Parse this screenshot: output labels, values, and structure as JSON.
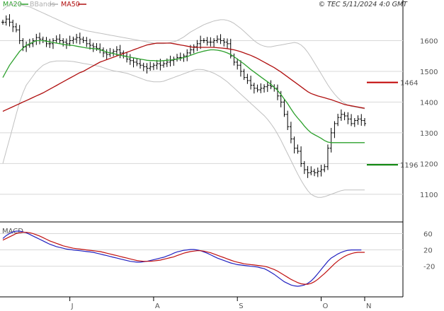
{
  "header": {
    "copyright": "© TEC 5/11/2024 4:0 GMT",
    "legend": [
      {
        "label": "MA20",
        "color": "#2ca02c"
      },
      {
        "label": "BBands",
        "color": "#b0b0b0"
      },
      {
        "label": "MA50",
        "color": "#b01010"
      }
    ]
  },
  "chart_data": [
    {
      "type": "ohlc",
      "yticks": [
        "1600",
        "1500",
        "1400",
        "1300",
        "1200",
        "1100"
      ],
      "ylim": [
        1010,
        1700
      ],
      "annotations": [
        {
          "label": "1464",
          "value": 1464,
          "color": "#c00000"
        },
        {
          "label": "1196",
          "value": 1196,
          "color": "#008000"
        }
      ],
      "xticks": [
        "J",
        "A",
        "S",
        "O",
        "N"
      ],
      "series": {
        "close": [
          1660,
          1670,
          1660,
          1645,
          1635,
          1600,
          1580,
          1585,
          1590,
          1600,
          1610,
          1605,
          1600,
          1590,
          1590,
          1600,
          1605,
          1600,
          1595,
          1590,
          1600,
          1605,
          1610,
          1605,
          1600,
          1590,
          1585,
          1580,
          1575,
          1570,
          1560,
          1555,
          1560,
          1565,
          1570,
          1560,
          1550,
          1540,
          1535,
          1530,
          1525,
          1520,
          1515,
          1510,
          1515,
          1520,
          1525,
          1520,
          1525,
          1530,
          1535,
          1540,
          1545,
          1545,
          1550,
          1560,
          1570,
          1580,
          1590,
          1600,
          1600,
          1595,
          1595,
          1600,
          1605,
          1600,
          1595,
          1590,
          1550,
          1530,
          1520,
          1500,
          1480,
          1470,
          1455,
          1445,
          1440,
          1445,
          1450,
          1455,
          1450,
          1445,
          1420,
          1400,
          1360,
          1320,
          1280,
          1250,
          1240,
          1200,
          1180,
          1170,
          1175,
          1170,
          1175,
          1180,
          1190,
          1250,
          1300,
          1330,
          1350,
          1360,
          1355,
          1345,
          1330,
          1340,
          1345,
          1340,
          1330
        ],
        "ma20": [
          1480,
          1500,
          1520,
          1535,
          1550,
          1565,
          1575,
          1585,
          1590,
          1595,
          1600,
          1600,
          1600,
          1598,
          1596,
          1594,
          1592,
          1590,
          1588,
          1586,
          1585,
          1584,
          1582,
          1580,
          1578,
          1576,
          1575,
          1574,
          1573,
          1570,
          1567,
          1563,
          1560,
          1558,
          1555,
          1553,
          1550,
          1548,
          1546,
          1544,
          1542,
          1540,
          1538,
          1536,
          1535,
          1535,
          1534,
          1534,
          1535,
          1536,
          1537,
          1538,
          1540,
          1542,
          1545,
          1548,
          1552,
          1556,
          1560,
          1563,
          1566,
          1568,
          1570,
          1570,
          1569,
          1567,
          1564,
          1560,
          1555,
          1548,
          1540,
          1532,
          1524,
          1515,
          1506,
          1498,
          1490,
          1482,
          1474,
          1466,
          1458,
          1448,
          1438,
          1425,
          1410,
          1395,
          1378,
          1362,
          1348,
          1336,
          1322,
          1310,
          1300,
          1294,
          1288,
          1282,
          1275,
          1270,
          1268,
          1268,
          1268,
          1268,
          1268,
          1268,
          1268,
          1268,
          1268,
          1268,
          1268
        ],
        "ma50": [
          1370,
          1375,
          1380,
          1385,
          1390,
          1395,
          1400,
          1405,
          1410,
          1415,
          1420,
          1425,
          1430,
          1436,
          1442,
          1448,
          1454,
          1460,
          1466,
          1472,
          1478,
          1484,
          1490,
          1496,
          1500,
          1506,
          1512,
          1518,
          1524,
          1530,
          1534,
          1538,
          1542,
          1546,
          1550,
          1554,
          1558,
          1562,
          1566,
          1570,
          1574,
          1578,
          1582,
          1586,
          1588,
          1590,
          1592,
          1592,
          1592,
          1592,
          1592,
          1590,
          1588,
          1586,
          1584,
          1582,
          1580,
          1578,
          1578,
          1578,
          1578,
          1578,
          1578,
          1578,
          1577,
          1576,
          1575,
          1574,
          1572,
          1570,
          1567,
          1564,
          1560,
          1556,
          1552,
          1547,
          1542,
          1536,
          1530,
          1524,
          1518,
          1512,
          1505,
          1498,
          1490,
          1482,
          1474,
          1466,
          1458,
          1450,
          1442,
          1434,
          1428,
          1424,
          1420,
          1417,
          1414,
          1411,
          1408,
          1404,
          1400,
          1396,
          1392,
          1390,
          1388,
          1386,
          1384,
          1382,
          1380
        ],
        "bb_upper": [
          1700,
          1710,
          1715,
          1720,
          1720,
          1718,
          1715,
          1712,
          1710,
          1705,
          1700,
          1695,
          1690,
          1685,
          1680,
          1675,
          1670,
          1665,
          1660,
          1655,
          1650,
          1646,
          1642,
          1638,
          1635,
          1632,
          1630,
          1628,
          1626,
          1624,
          1622,
          1620,
          1618,
          1616,
          1614,
          1612,
          1610,
          1608,
          1606,
          1604,
          1602,
          1600,
          1598,
          1596,
          1594,
          1592,
          1590,
          1590,
          1590,
          1592,
          1594,
          1596,
          1600,
          1606,
          1612,
          1620,
          1628,
          1634,
          1640,
          1646,
          1652,
          1656,
          1660,
          1664,
          1666,
          1668,
          1668,
          1666,
          1662,
          1656,
          1648,
          1640,
          1630,
          1620,
          1610,
          1600,
          1592,
          1586,
          1582,
          1580,
          1580,
          1582,
          1584,
          1586,
          1588,
          1590,
          1592,
          1594,
          1592,
          1586,
          1576,
          1562,
          1546,
          1528,
          1510,
          1492,
          1474,
          1456,
          1440,
          1426,
          1414,
          1404,
          1396,
          1390,
          1386,
          1384,
          1382,
          1380,
          1378
        ],
        "bb_lower": [
          1200,
          1240,
          1280,
          1320,
          1360,
          1400,
          1430,
          1455,
          1470,
          1485,
          1500,
          1510,
          1520,
          1525,
          1530,
          1532,
          1534,
          1534,
          1534,
          1534,
          1533,
          1532,
          1530,
          1528,
          1526,
          1524,
          1522,
          1520,
          1518,
          1516,
          1512,
          1508,
          1505,
          1502,
          1500,
          1498,
          1496,
          1494,
          1490,
          1486,
          1482,
          1478,
          1474,
          1470,
          1468,
          1466,
          1466,
          1466,
          1468,
          1472,
          1476,
          1480,
          1484,
          1488,
          1492,
          1496,
          1500,
          1504,
          1506,
          1506,
          1505,
          1502,
          1498,
          1494,
          1488,
          1482,
          1474,
          1466,
          1456,
          1446,
          1436,
          1426,
          1416,
          1406,
          1396,
          1386,
          1376,
          1366,
          1356,
          1344,
          1330,
          1314,
          1296,
          1276,
          1254,
          1232,
          1210,
          1188,
          1166,
          1146,
          1128,
          1112,
          1100,
          1094,
          1090,
          1090,
          1092,
          1096,
          1100,
          1104,
          1108,
          1112,
          1114,
          1114,
          1114,
          1114,
          1114,
          1114,
          1114
        ]
      }
    },
    {
      "type": "line",
      "title": "MACD",
      "yticks": [
        "60",
        "20",
        "-20"
      ],
      "ylim": [
        -95,
        85
      ],
      "series": [
        {
          "color": "#2020c0",
          "values": [
            48,
            55,
            60,
            64,
            66,
            66,
            64,
            62,
            58,
            54,
            50,
            46,
            42,
            38,
            34,
            31,
            28,
            26,
            24,
            22,
            21,
            20,
            19,
            18,
            17,
            16,
            15,
            14,
            12,
            10,
            8,
            6,
            4,
            2,
            0,
            -2,
            -4,
            -6,
            -8,
            -9,
            -10,
            -10,
            -9,
            -8,
            -6,
            -4,
            -2,
            0,
            2,
            5,
            8,
            12,
            15,
            17,
            19,
            20,
            21,
            21,
            20,
            18,
            15,
            12,
            8,
            4,
            0,
            -3,
            -6,
            -9,
            -12,
            -14,
            -16,
            -17,
            -18,
            -19,
            -20,
            -21,
            -22,
            -24,
            -26,
            -30,
            -35,
            -40,
            -46,
            -52,
            -58,
            -62,
            -66,
            -68,
            -69,
            -68,
            -66,
            -62,
            -56,
            -48,
            -38,
            -28,
            -18,
            -8,
            0,
            5,
            10,
            14,
            17,
            19,
            20,
            20,
            20,
            20
          ]
        },
        {
          "color": "#c01010",
          "values": [
            44,
            48,
            52,
            56,
            60,
            62,
            63,
            63,
            62,
            60,
            57,
            54,
            50,
            46,
            42,
            39,
            36,
            33,
            30,
            28,
            26,
            24,
            23,
            22,
            21,
            20,
            19,
            18,
            17,
            16,
            14,
            12,
            10,
            8,
            6,
            4,
            2,
            0,
            -2,
            -4,
            -6,
            -7,
            -8,
            -8,
            -8,
            -7,
            -6,
            -5,
            -3,
            -1,
            1,
            3,
            6,
            9,
            12,
            14,
            16,
            17,
            18,
            18,
            17,
            15,
            13,
            10,
            7,
            4,
            1,
            -2,
            -5,
            -8,
            -10,
            -12,
            -14,
            -15,
            -16,
            -17,
            -18,
            -19,
            -20,
            -22,
            -25,
            -28,
            -32,
            -37,
            -42,
            -47,
            -52,
            -56,
            -60,
            -63,
            -64,
            -64,
            -62,
            -58,
            -52,
            -45,
            -38,
            -30,
            -22,
            -14,
            -7,
            -1,
            4,
            8,
            11,
            13,
            14,
            14,
            14
          ]
        }
      ],
      "xticks": [
        "J",
        "A",
        "S",
        "O",
        "N"
      ]
    }
  ]
}
